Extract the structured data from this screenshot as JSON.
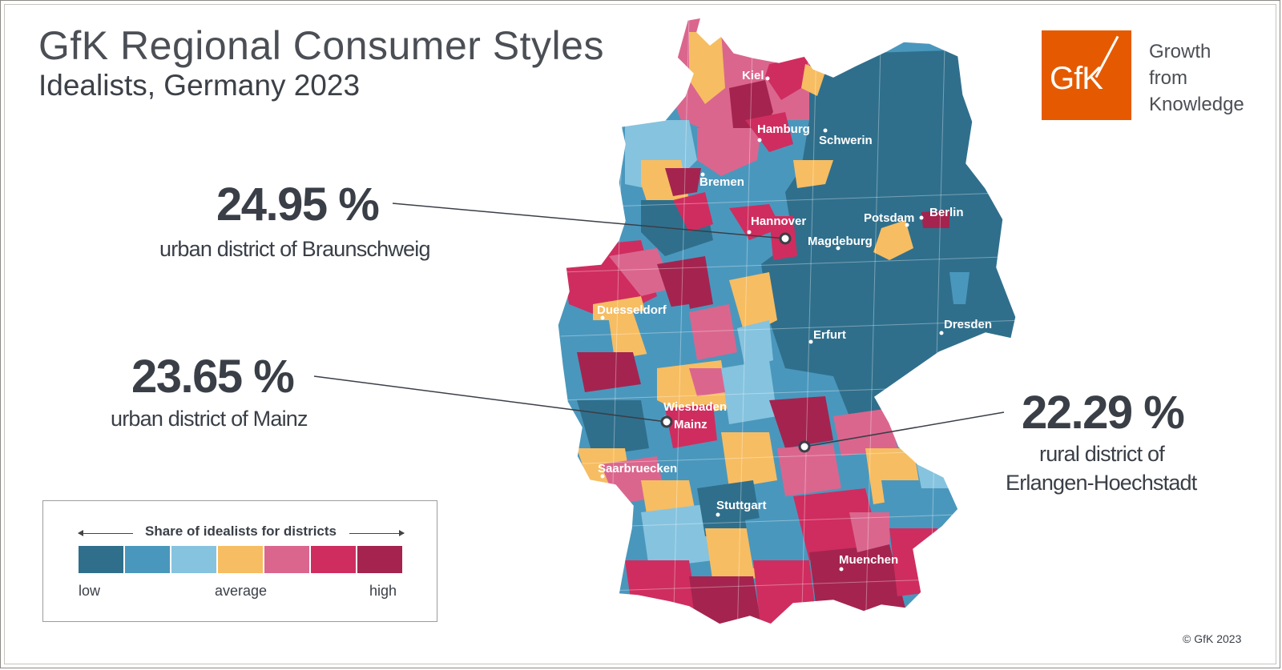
{
  "title": "GfK Regional Consumer Styles",
  "subtitle": "Idealists, Germany 2023",
  "logo": {
    "mark": "GfK",
    "tagline": [
      "Growth",
      "from",
      "Knowledge"
    ],
    "color": "#e55a00"
  },
  "callouts": [
    {
      "value": "24.95 %",
      "label": "urban district of Braunschweig"
    },
    {
      "value": "23.65 %",
      "label": "urban district of Mainz"
    },
    {
      "value": "22.29 %",
      "label_lines": [
        "rural district of",
        "Erlangen-Hoechstadt"
      ]
    }
  ],
  "cities": [
    "Kiel",
    "Hamburg",
    "Schwerin",
    "Bremen",
    "Hannover",
    "Potsdam",
    "Berlin",
    "Magdeburg",
    "Duesseldorf",
    "Erfurt",
    "Dresden",
    "Wiesbaden",
    "Mainz",
    "Saarbruecken",
    "Stuttgart",
    "Muenchen"
  ],
  "legend": {
    "title": "Share of idealists for districts",
    "low": "low",
    "average": "average",
    "high": "high",
    "colors": [
      "#2f6f8c",
      "#4a97bd",
      "#86c3df",
      "#f7bd62",
      "#da668e",
      "#cf2d5f",
      "#a4244f"
    ]
  },
  "copyright": "© GfK 2023"
}
